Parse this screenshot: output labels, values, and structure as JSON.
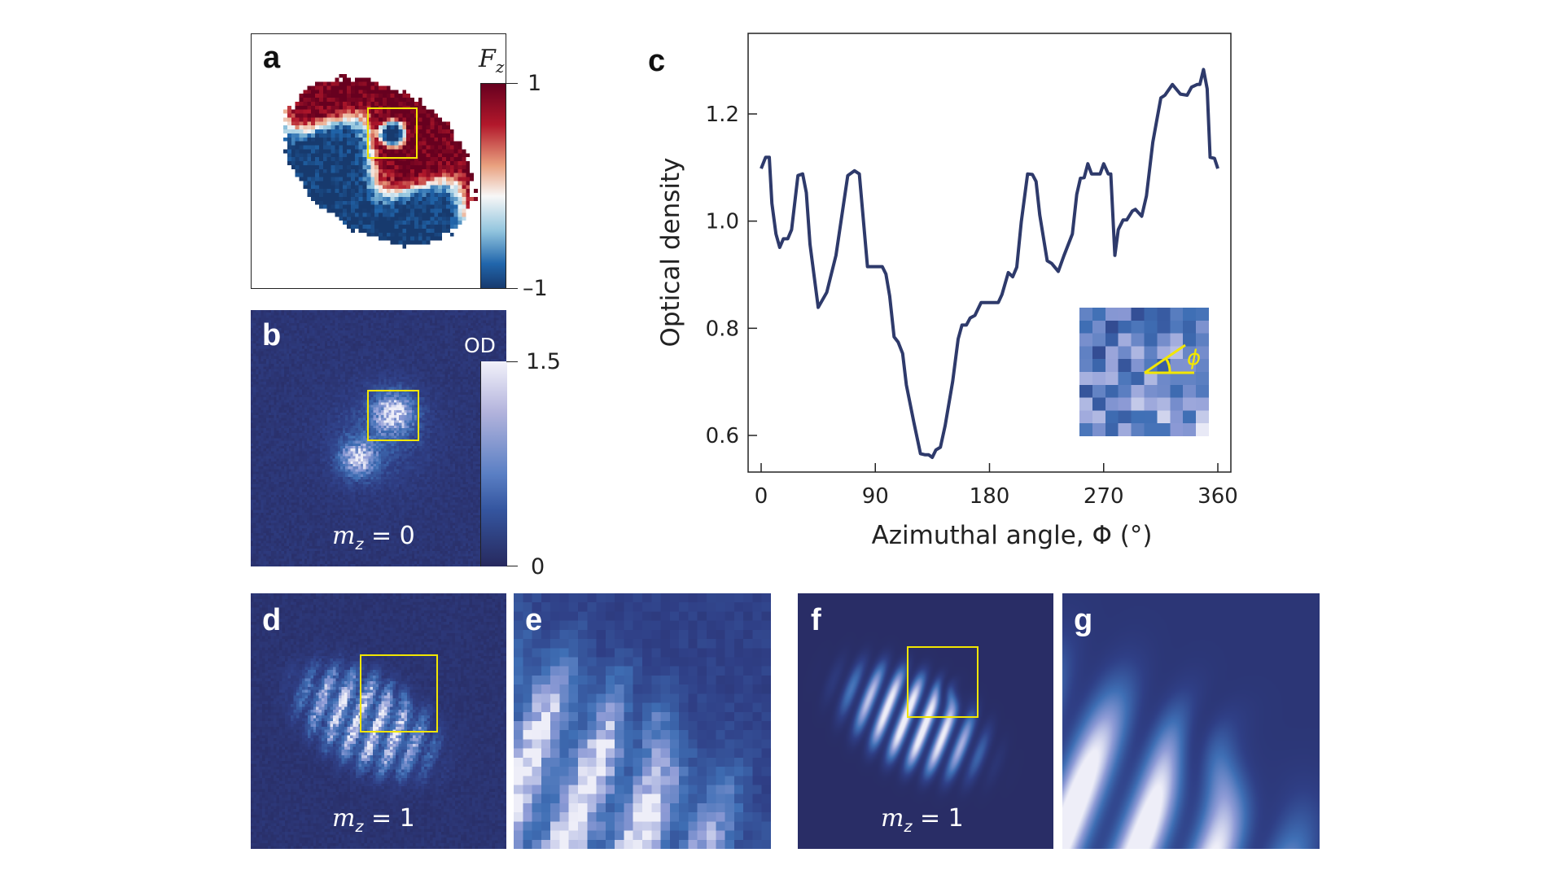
{
  "panels": {
    "a": {
      "label": "a",
      "colorbar_title": "F",
      "colorbar_sub": "z",
      "colorbar_max": "1",
      "colorbar_min": "–1",
      "colormap": [
        "#2158a0",
        "#f7f7f7",
        "#8b1a1a"
      ]
    },
    "b": {
      "label": "b",
      "colorbar_title": "OD",
      "colorbar_max": "1.5",
      "colorbar_min": "0",
      "annotation_var": "m",
      "annotation_sub": "z",
      "annotation_value": " = 0",
      "colormap": [
        "#2a2660",
        "#3f6fb5",
        "#eeeef8"
      ]
    },
    "c": {
      "label": "c",
      "inset_angle_symbol": "ϕ"
    },
    "d": {
      "label": "d",
      "annotation_var": "m",
      "annotation_sub": "z",
      "annotation_value": " = 1"
    },
    "e": {
      "label": "e"
    },
    "f": {
      "label": "f",
      "annotation_var": "m",
      "annotation_sub": "z",
      "annotation_value": " = 1"
    },
    "g": {
      "label": "g"
    }
  },
  "colors": {
    "line": "#2e3a6b",
    "highlight_box": "#f2e600"
  },
  "chart_data": {
    "type": "line",
    "title": "",
    "xlabel": "Azimuthal angle, Φ (°)",
    "ylabel": "Optical density",
    "xlim": [
      -4,
      364
    ],
    "ylim": [
      0.52,
      1.34
    ],
    "xticks": [
      0,
      90,
      180,
      270,
      360
    ],
    "xtick_labels": [
      "0",
      "90",
      "180",
      "270",
      "360"
    ],
    "yticks": [
      0.6,
      0.8,
      1.0,
      1.2
    ],
    "ytick_labels": [
      "0.6",
      "0.8",
      "1.0",
      "1.2"
    ],
    "grid": false,
    "series": [
      {
        "x": [
          0,
          3.5,
          6.4,
          8.5,
          11.7,
          14.6,
          17.5,
          21,
          24,
          29,
          32.7,
          35.6,
          38.5,
          45,
          51.7,
          59,
          68.3,
          73.6,
          77.4,
          83.8,
          95.5,
          98.4,
          101.3,
          104.8,
          108,
          111.5,
          114.5,
          120.3,
          125.6,
          129,
          132,
          134.9,
          137.8,
          141.3,
          145,
          151,
          155.3,
          158.3,
          161.8,
          164.7,
          168.5,
          173.4,
          186.9,
          189.8,
          194.8,
          198.3,
          201.5,
          205,
          210,
          213.8,
          216.7,
          219.6,
          225.5,
          229,
          234.2,
          238.6,
          245.3,
          248.8,
          251.7,
          254.6,
          257.5,
          260.5,
          267.2,
          270,
          273.6,
          275.6,
          278.8,
          281.5,
          285.3,
          288.2,
          292.6,
          295,
          300,
          303.7,
          308.7,
          311.6,
          315.1,
          318.3,
          324.2,
          330.5,
          335.8,
          339.3,
          343.7,
          345.8,
          348.7,
          351.6,
          353.9,
          357.4,
          360
        ],
        "y": [
          1.098,
          1.119,
          1.119,
          1.033,
          0.976,
          0.951,
          0.967,
          0.967,
          0.984,
          1.085,
          1.088,
          1.053,
          0.957,
          0.839,
          0.867,
          0.936,
          1.085,
          1.094,
          1.088,
          0.915,
          0.915,
          0.901,
          0.86,
          0.784,
          0.774,
          0.753,
          0.694,
          0.625,
          0.566,
          0.564,
          0.564,
          0.559,
          0.573,
          0.578,
          0.618,
          0.701,
          0.78,
          0.806,
          0.806,
          0.819,
          0.824,
          0.848,
          0.848,
          0.863,
          0.904,
          0.896,
          0.914,
          0.998,
          1.088,
          1.087,
          1.074,
          1.012,
          0.926,
          0.921,
          0.906,
          0.935,
          0.976,
          1.05,
          1.08,
          1.081,
          1.107,
          1.088,
          1.088,
          1.107,
          1.088,
          1.088,
          0.936,
          0.984,
          1.002,
          1.002,
          1.019,
          1.022,
          1.009,
          1.047,
          1.147,
          1.185,
          1.23,
          1.235,
          1.255,
          1.237,
          1.235,
          1.25,
          1.255,
          1.255,
          1.283,
          1.247,
          1.119,
          1.117,
          1.098
        ]
      }
    ]
  }
}
